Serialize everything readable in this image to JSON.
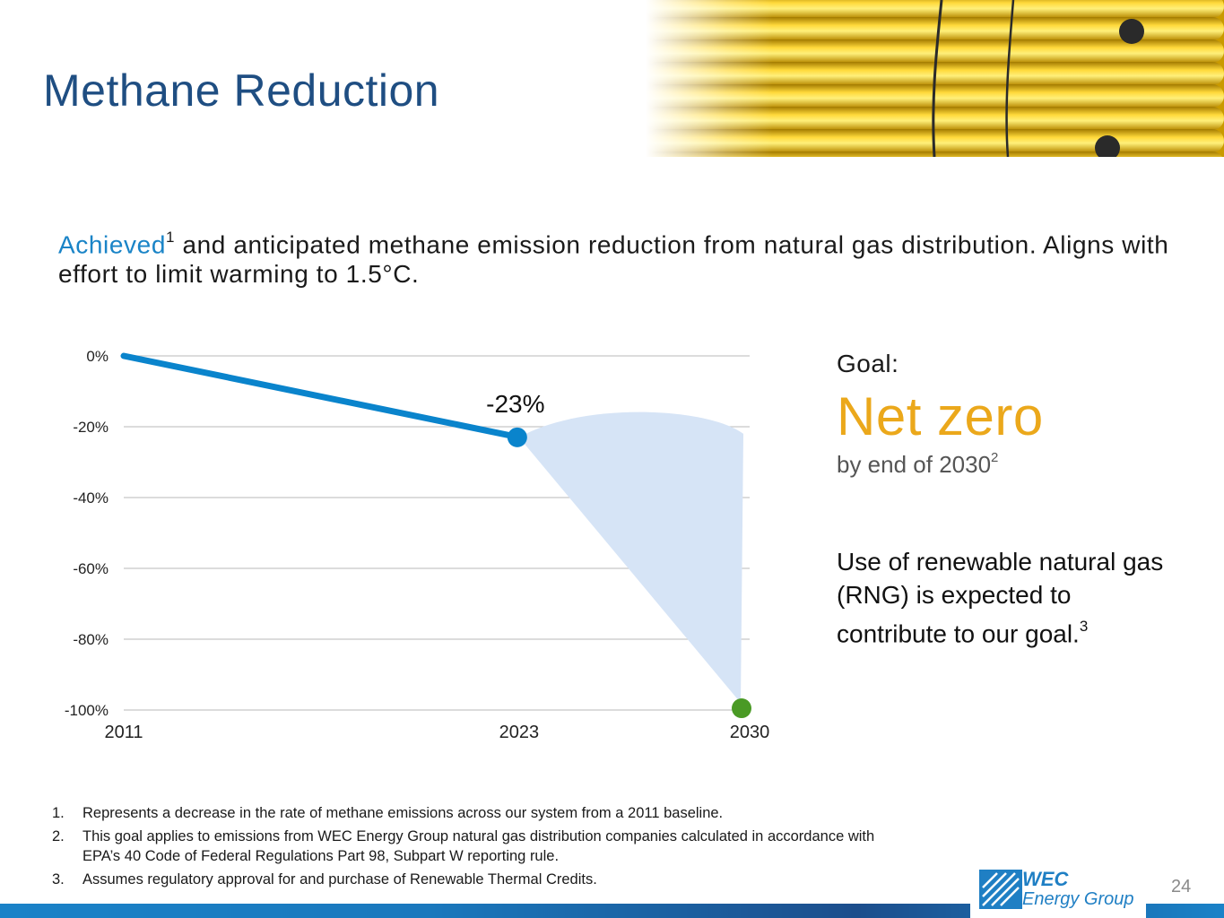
{
  "slide": {
    "title": "Methane Reduction",
    "subtitle_highlight": "Achieved",
    "subtitle_highlight_sup": "1",
    "subtitle_rest": " and anticipated methane emission reduction from natural gas distribution. Aligns with effort to limit warming to 1.5°C.",
    "page_number": "24"
  },
  "goal": {
    "label": "Goal:",
    "value": "Net zero",
    "when": "by end of 2030",
    "when_sup": "2",
    "rng_text": "Use of renewable natural gas (RNG) is expected to contribute to our goal.",
    "rng_sup": "3"
  },
  "footnotes": [
    {
      "num": "1.",
      "text": "Represents a decrease in the rate of methane emissions across our system from a 2011 baseline."
    },
    {
      "num": "2.",
      "text": "This goal applies to emissions from WEC Energy Group natural gas distribution companies calculated in accordance with EPA’s 40 Code of Federal Regulations Part 98, Subpart W reporting rule."
    },
    {
      "num": "3.",
      "text": "Assumes regulatory approval for and purchase of Renewable Thermal Credits."
    }
  ],
  "logo": {
    "line1": "WEC",
    "line2": "Energy Group"
  },
  "colors": {
    "title": "#1f4e82",
    "highlight": "#1a84c7",
    "goal_value": "#eba81b",
    "series_line": "#0a84cc",
    "target_point": "#4a9a25",
    "projection_fill": "#d6e4f6"
  },
  "chart_data": {
    "type": "line",
    "title": "",
    "xlabel": "",
    "ylabel": "",
    "x": [
      2011,
      2023,
      2030
    ],
    "x_tick_labels": [
      "2011",
      "2023",
      "2030"
    ],
    "ylim": [
      -100,
      0
    ],
    "y_ticks": [
      0,
      -20,
      -40,
      -60,
      -80,
      -100
    ],
    "y_tick_labels": [
      "0%",
      "-20%",
      "-40%",
      "-60%",
      "-80%",
      "-100%"
    ],
    "grid": true,
    "series": [
      {
        "name": "Achieved",
        "x": [
          2011,
          2023
        ],
        "values": [
          0,
          -23
        ]
      },
      {
        "name": "Goal",
        "x": [
          2030
        ],
        "values": [
          -99
        ]
      }
    ],
    "projection_band": {
      "x": [
        2023,
        2030
      ],
      "upper": [
        -23,
        -22
      ],
      "lower": [
        -23,
        -98
      ]
    },
    "annotations": [
      {
        "x": 2023,
        "y": -23,
        "text": "-23%"
      }
    ]
  }
}
